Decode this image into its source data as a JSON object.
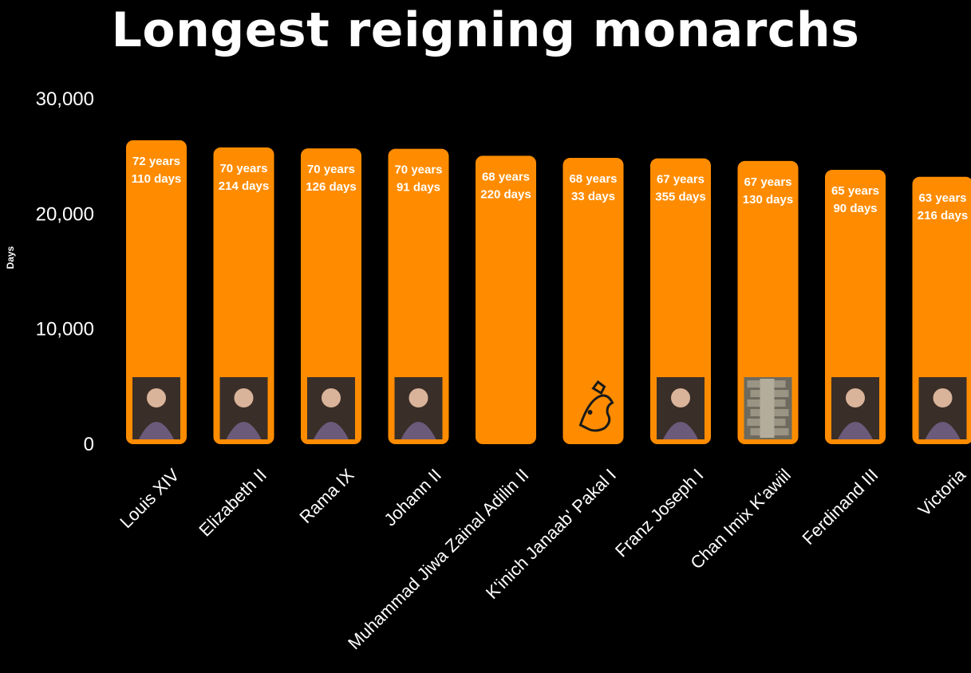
{
  "chart_data": {
    "type": "bar",
    "title": "Longest reigning monarchs",
    "xlabel": "",
    "ylabel": "Days",
    "ylim": [
      0,
      30000
    ],
    "yticks": [
      0,
      10000,
      20000,
      30000
    ],
    "ytick_labels": [
      "0",
      "10,000",
      "20,000",
      "30,000"
    ],
    "grid": false,
    "bar_color": "#FF8C00",
    "background_color": "#000000",
    "categories": [
      "Louis XIV",
      "Elizabeth II",
      "Rama IX",
      "Johann II",
      "Muhammad Jiwa Zainal Adilin II",
      "K'inich Janaab' Pakal I",
      "Franz Joseph I",
      "Chan Imix K'awiil",
      "Ferdinand III",
      "Victoria"
    ],
    "values": [
      26407,
      25782,
      25694,
      25658,
      25057,
      24870,
      24827,
      24602,
      23831,
      23226
    ],
    "data_labels": [
      [
        "72 years",
        "110 days"
      ],
      [
        "70 years",
        "214 days"
      ],
      [
        "70 years",
        "126 days"
      ],
      [
        "70 years",
        "91 days"
      ],
      [
        "68 years",
        "220 days"
      ],
      [
        "68 years",
        "33 days"
      ],
      [
        "67 years",
        "355 days"
      ],
      [
        "67 years",
        "130 days"
      ],
      [
        "65 years",
        "90 days"
      ],
      [
        "63 years",
        "216 days"
      ]
    ],
    "portraits": [
      "portrait-icon",
      "portrait-icon",
      "portrait-icon",
      "portrait-icon",
      null,
      "glyph-drawing-icon",
      "portrait-icon",
      "stone-stela-icon",
      "portrait-icon",
      "portrait-icon"
    ]
  }
}
